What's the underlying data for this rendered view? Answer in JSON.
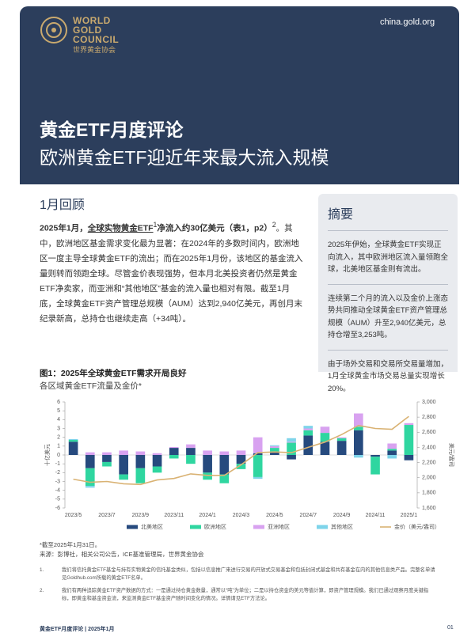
{
  "header": {
    "logo_en": [
      "WORLD",
      "GOLD",
      "COUNCIL"
    ],
    "logo_cn": "世界黄金协会",
    "url": "china.gold.org",
    "title": "黄金ETF月度评论",
    "subtitle": "欧洲黄金ETF迎近年来最大流入规模"
  },
  "section": {
    "heading": "1月回顾",
    "lead_a": "2025年1月，",
    "lead_link": "全球实物黄金ETF",
    "lead_sup": "1",
    "lead_b": "净流入约30亿美元（表1，p2）",
    "lead_sup2": "2",
    "body": "。其中，欧洲地区基金需求变化最为显著：在2024年的多数时间内，欧洲地区一度主导全球黄金ETF的流出；而在2025年1月份，该地区的基金流入量则转而领跑全球。尽管金价表现强势，但本月北美投资者仍然是黄金ETF净卖家，而亚洲和“其他地区”基金的流入量也相对有限。截至1月底，全球黄金ETF资产管理总规模（AUM）达到2,940亿美元，再创月末纪录新高，总持仓也继续走高（+34吨）。"
  },
  "summary": {
    "heading": "摘要",
    "items": [
      "2025年伊始，全球黄金ETF实现正向流入，其中欧洲地区流入量领跑全球，北美地区基金则有流出。",
      "连续第二个月的流入以及金价上涨态势共同推动全球黄金ETF资产管理总规模（AUM）升至2,940亿美元，总持仓增至3,253吨。",
      "由于场外交易和交易所交易量增加，1月全球黄金市场交易总量实现增长20%。"
    ]
  },
  "chart_data": {
    "type": "bar",
    "stacked": true,
    "title": "图1：2025年全球黄金ETF需求开局良好",
    "subtitle": "各区域黄金ETF流量及金价*",
    "y_label": "十亿美元",
    "y2_label": "美元/盎司",
    "categories": [
      "2023/5",
      null,
      "2023/7",
      null,
      "2023/9",
      null,
      "2023/11",
      null,
      "2024/1",
      null,
      "2024/3",
      null,
      "2024/5",
      null,
      "2024/7",
      null,
      "2024/9",
      null,
      "2024/11",
      null,
      "2025/1"
    ],
    "series": [
      {
        "name": "北美地区",
        "color": "#264a7e",
        "values": [
          1.5,
          -1.5,
          -0.8,
          -2.2,
          -1.5,
          -1.3,
          0.8,
          0.8,
          -2.0,
          -2.2,
          -1.0,
          0.2,
          0.3,
          -0.5,
          2.2,
          1.5,
          1.6,
          2.8,
          -0.2,
          0.5,
          -0.6
        ]
      },
      {
        "name": "欧洲地区",
        "color": "#2fd6a0",
        "values": [
          0.2,
          -2.0,
          -0.5,
          -0.6,
          -1.7,
          -0.7,
          -0.4,
          -1.0,
          -0.8,
          -1.0,
          -0.6,
          -2.5,
          0.5,
          1.4,
          0.6,
          1.0,
          0.3,
          0.4,
          -2.0,
          0.2,
          3.4
        ]
      },
      {
        "name": "亚洲地区",
        "color": "#d8a2f0",
        "values": [
          0,
          0.3,
          0.3,
          0.5,
          0.4,
          0.2,
          0.1,
          0.4,
          0.5,
          0.4,
          0.5,
          1.8,
          0.2,
          0.1,
          0.2,
          0.7,
          0.1,
          1.5,
          0,
          0.6,
          0.2
        ]
      },
      {
        "name": "其他地区",
        "color": "#7ed4ea",
        "values": [
          0.1,
          -0.2,
          0,
          0,
          0,
          0,
          0,
          0,
          0,
          0,
          0,
          -0.2,
          0.1,
          0.4,
          0.3,
          0,
          0,
          -0.3,
          0,
          -0.4,
          0
        ]
      },
      {
        "name": "金价（美元/盎司）",
        "color": "#d9b273",
        "type": "line",
        "axis": "y2",
        "values": [
          1980,
          1940,
          1950,
          1920,
          1910,
          1970,
          1990,
          2050,
          2030,
          2030,
          2170,
          2330,
          2340,
          2330,
          2400,
          2470,
          2570,
          2690,
          2650,
          2640,
          2810
        ]
      }
    ],
    "ylim": [
      -6,
      6
    ],
    "yticks": [
      -6,
      -5,
      -4,
      -3,
      -2,
      -1,
      0,
      1,
      2,
      3,
      4,
      5,
      6
    ],
    "y2lim": [
      1600,
      3000
    ],
    "y2ticks": [
      {
        "value": 1600,
        "label": "1,600"
      },
      {
        "value": 1800,
        "label": "1,800"
      },
      {
        "value": 2000,
        "label": "2,000"
      },
      {
        "value": 2200,
        "label": "2,200"
      },
      {
        "value": 2400,
        "label": "2,400"
      },
      {
        "value": 2600,
        "label": "2,600"
      },
      {
        "value": 2800,
        "label": "2,800"
      },
      {
        "value": 3000,
        "label": "3,000"
      }
    ],
    "grid": false,
    "legend": "bottom"
  },
  "chart_notes": [
    "*截至2025年1月31日。",
    "来源：彭博社，相关公司公告，ICE基准管理局，世界黄金协会"
  ],
  "footnotes": [
    {
      "number": "1.",
      "text": "我们将信托黄金ETF基金与持有实物黄金的信托基金类似，包括以信息推广来进行交易的开放式交易基金和包括封闭式基金和共有基金在内的其他信息类产品。完整名单请见Goldhub.com所载的黄金ETF名单。"
    },
    {
      "number": "2.",
      "text": "我们有两种追踪黄金ETF资产数据的方式：一是通过持仓黄金数量，通常以“吨”为单位；二是以持仓资金的美元等值计算，即资产管理规模。我们已通过观察月度关键指标，即黄金和基金资金流，来监测黄金ETF基金资产随时间变化的情况。详情请见ETF方法论。"
    }
  ],
  "footer": {
    "left": "黄金ETF月度评论 | 2025年1月",
    "page": "01"
  }
}
